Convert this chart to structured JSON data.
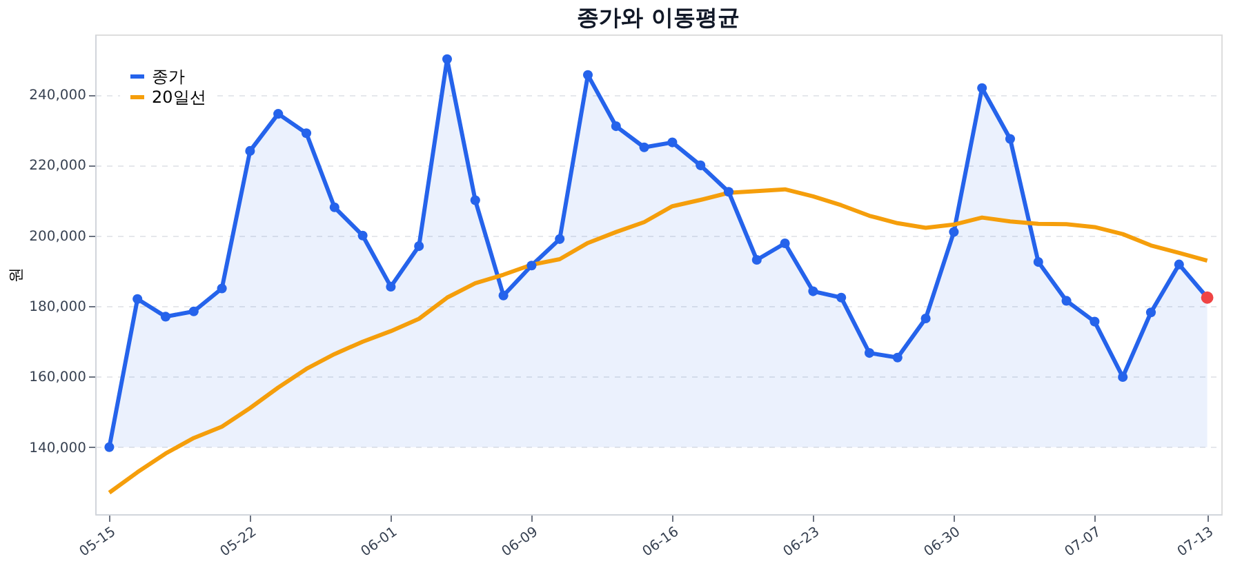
{
  "chart_data": {
    "type": "line",
    "title": "종가와 이동평균",
    "ylabel": "원",
    "categories": [
      "05-15",
      null,
      null,
      null,
      null,
      "05-22",
      null,
      null,
      null,
      null,
      "06-01",
      null,
      null,
      null,
      null,
      "06-09",
      null,
      null,
      null,
      null,
      "06-16",
      null,
      null,
      null,
      null,
      "06-23",
      null,
      null,
      null,
      null,
      "06-30",
      null,
      null,
      null,
      null,
      "07-07",
      null,
      null,
      null,
      "07-13"
    ],
    "series": [
      {
        "name": "종가",
        "type": "area",
        "color": "#2563eb",
        "marker": "circle",
        "values": [
          140000,
          182000,
          177000,
          178500,
          185000,
          224000,
          234500,
          229000,
          208000,
          200000,
          185500,
          197000,
          250000,
          210000,
          183000,
          191500,
          199000,
          245500,
          231000,
          225000,
          226400,
          219900,
          212400,
          193100,
          197800,
          184200,
          182400,
          166700,
          165400,
          176500,
          201000,
          241800,
          227400,
          192500,
          181500,
          175600,
          159900,
          178200,
          191800,
          182400
        ]
      },
      {
        "name": "20일선",
        "color": "#f59e0b",
        "marker": "none",
        "values": [
          127100,
          132900,
          138200,
          142600,
          145800,
          151100,
          156900,
          162200,
          166400,
          169900,
          172900,
          176400,
          182400,
          186500,
          188900,
          191700,
          193300,
          197900,
          201000,
          203800,
          208300,
          210100,
          212100,
          212600,
          213100,
          211100,
          208600,
          205600,
          203500,
          202200,
          203100,
          205100,
          204000,
          203300,
          203200,
          202400,
          200400,
          197200,
          195100,
          192900
        ]
      },
      {
        "type": "scatter",
        "color": "#ef4444",
        "marker": "circle",
        "values": [
          null,
          null,
          null,
          null,
          null,
          null,
          null,
          null,
          null,
          null,
          null,
          null,
          null,
          null,
          null,
          null,
          null,
          null,
          null,
          null,
          null,
          null,
          null,
          null,
          null,
          null,
          null,
          null,
          null,
          null,
          null,
          null,
          null,
          null,
          null,
          null,
          null,
          null,
          null,
          182400
        ]
      }
    ],
    "ylim": [
      121000,
      257000
    ],
    "yticks": [
      {
        "value": 140000,
        "label": "140,000"
      },
      {
        "value": 160000,
        "label": "160,000"
      },
      {
        "value": 180000,
        "label": "180,000"
      },
      {
        "value": 200000,
        "label": "200,000"
      },
      {
        "value": 220000,
        "label": "220,000"
      },
      {
        "value": 240000,
        "label": "240,000"
      }
    ],
    "grid": "y",
    "legend": "top left"
  }
}
